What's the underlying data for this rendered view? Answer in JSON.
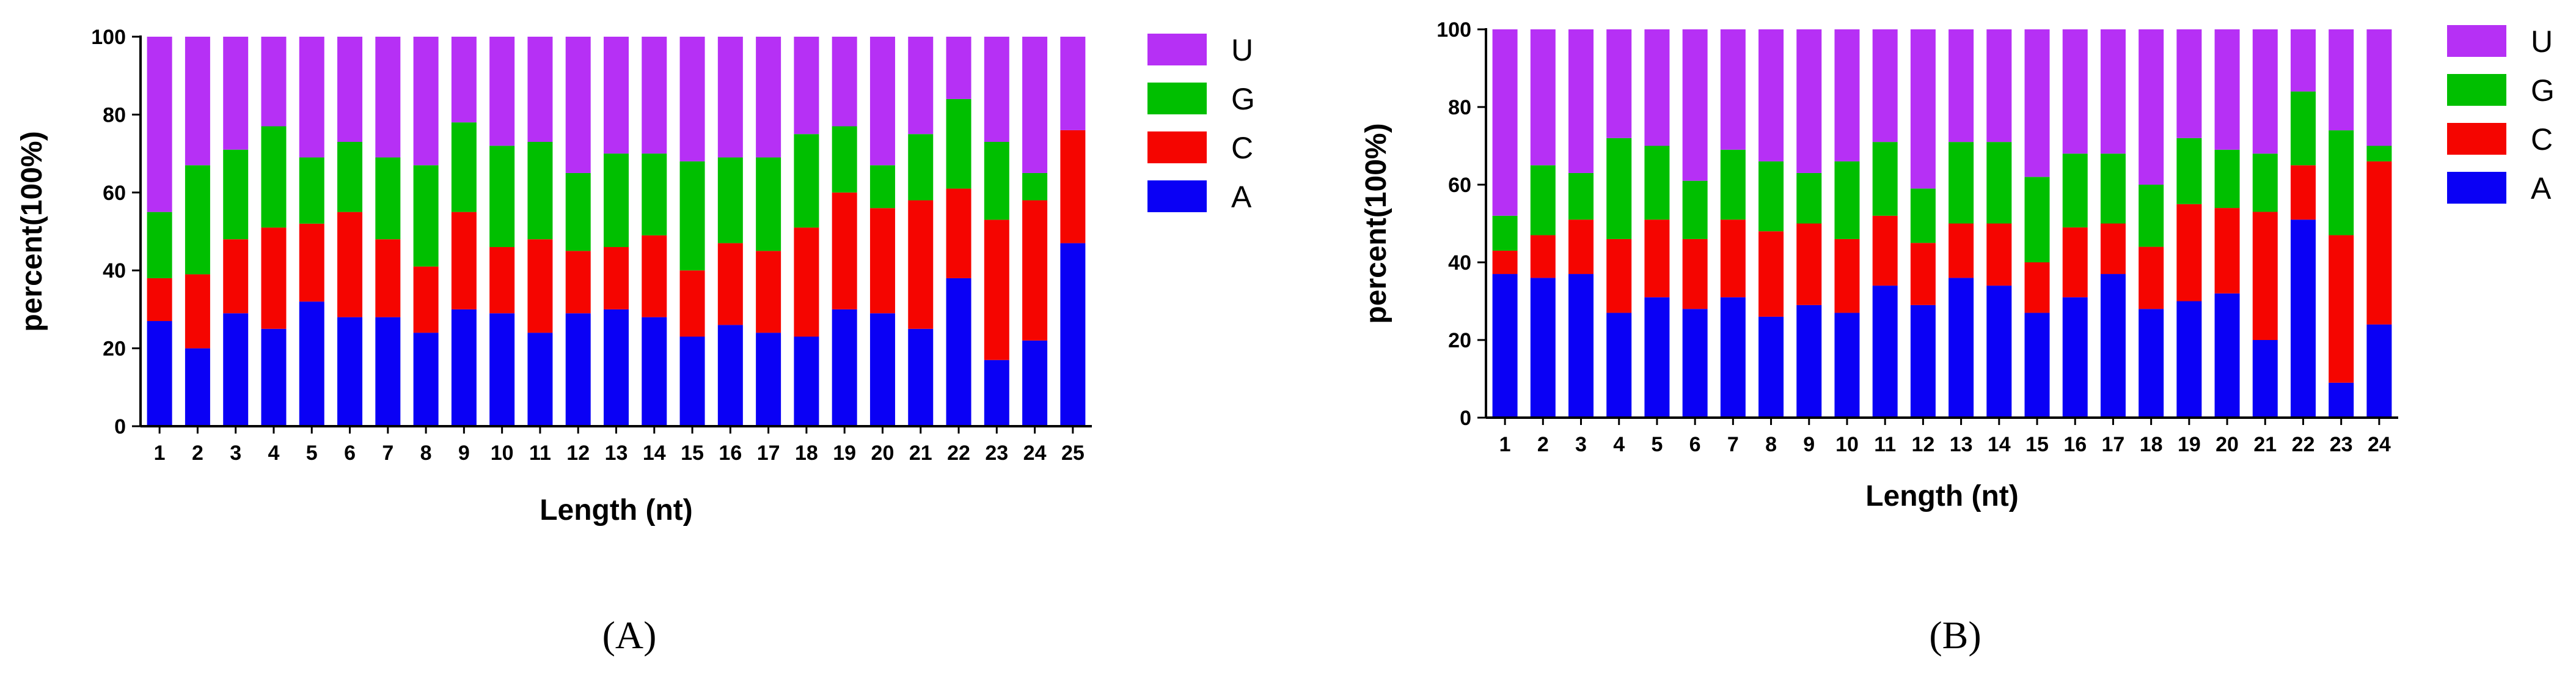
{
  "colors": {
    "A": "#0a00f5",
    "C": "#f50500",
    "G": "#00bf00",
    "U": "#b630f5"
  },
  "chart_data": [
    {
      "type": "bar",
      "stacked": true,
      "panel": "(A)",
      "title": "",
      "xlabel": "Length (nt)",
      "ylabel": "percent(100%)",
      "ylim": [
        0,
        100
      ],
      "yticks": [
        0,
        20,
        40,
        60,
        80,
        100
      ],
      "legend_order": [
        "U",
        "G",
        "C",
        "A"
      ],
      "legend_position": "right",
      "categories": [
        "1",
        "2",
        "3",
        "4",
        "5",
        "6",
        "7",
        "8",
        "9",
        "10",
        "11",
        "12",
        "13",
        "14",
        "15",
        "16",
        "17",
        "18",
        "19",
        "20",
        "21",
        "22",
        "23",
        "24",
        "25"
      ],
      "series": [
        {
          "name": "A",
          "values": [
            27,
            20,
            29,
            25,
            32,
            28,
            28,
            24,
            30,
            29,
            24,
            29,
            30,
            28,
            23,
            26,
            24,
            23,
            30,
            29,
            25,
            38,
            17,
            22,
            47
          ]
        },
        {
          "name": "C",
          "values": [
            11,
            19,
            19,
            26,
            20,
            27,
            20,
            17,
            25,
            17,
            24,
            16,
            16,
            21,
            17,
            21,
            21,
            28,
            30,
            27,
            33,
            23,
            36,
            36,
            29
          ]
        },
        {
          "name": "G",
          "values": [
            17,
            28,
            23,
            26,
            17,
            18,
            21,
            26,
            23,
            26,
            25,
            20,
            24,
            21,
            28,
            22,
            24,
            24,
            17,
            11,
            17,
            23,
            20,
            7,
            0
          ]
        },
        {
          "name": "U",
          "values": [
            45,
            33,
            29,
            23,
            31,
            27,
            31,
            33,
            22,
            28,
            27,
            35,
            30,
            30,
            32,
            31,
            31,
            25,
            23,
            33,
            25,
            16,
            27,
            35,
            24
          ]
        }
      ]
    },
    {
      "type": "bar",
      "stacked": true,
      "panel": "(B)",
      "title": "",
      "xlabel": "Length (nt)",
      "ylabel": "percent(100%)",
      "ylim": [
        0,
        100
      ],
      "yticks": [
        0,
        20,
        40,
        60,
        80,
        100
      ],
      "legend_order": [
        "U",
        "G",
        "C",
        "A"
      ],
      "legend_position": "right",
      "categories": [
        "1",
        "2",
        "3",
        "4",
        "5",
        "6",
        "7",
        "8",
        "9",
        "10",
        "11",
        "12",
        "13",
        "14",
        "15",
        "16",
        "17",
        "18",
        "19",
        "20",
        "21",
        "22",
        "23",
        "24"
      ],
      "series": [
        {
          "name": "A",
          "values": [
            37,
            36,
            37,
            27,
            31,
            28,
            31,
            26,
            29,
            27,
            34,
            29,
            36,
            34,
            27,
            31,
            37,
            28,
            30,
            32,
            20,
            51,
            9,
            24
          ]
        },
        {
          "name": "C",
          "values": [
            6,
            11,
            14,
            19,
            20,
            18,
            20,
            22,
            21,
            19,
            18,
            16,
            14,
            16,
            13,
            18,
            13,
            16,
            25,
            22,
            33,
            14,
            38,
            42
          ]
        },
        {
          "name": "G",
          "values": [
            9,
            18,
            12,
            26,
            19,
            15,
            18,
            18,
            13,
            20,
            19,
            14,
            21,
            21,
            22,
            19,
            18,
            16,
            17,
            15,
            15,
            19,
            27,
            4
          ]
        },
        {
          "name": "U",
          "values": [
            48,
            35,
            37,
            28,
            30,
            39,
            31,
            34,
            37,
            34,
            29,
            41,
            29,
            29,
            38,
            32,
            32,
            40,
            28,
            31,
            32,
            16,
            26,
            30
          ]
        }
      ]
    }
  ]
}
